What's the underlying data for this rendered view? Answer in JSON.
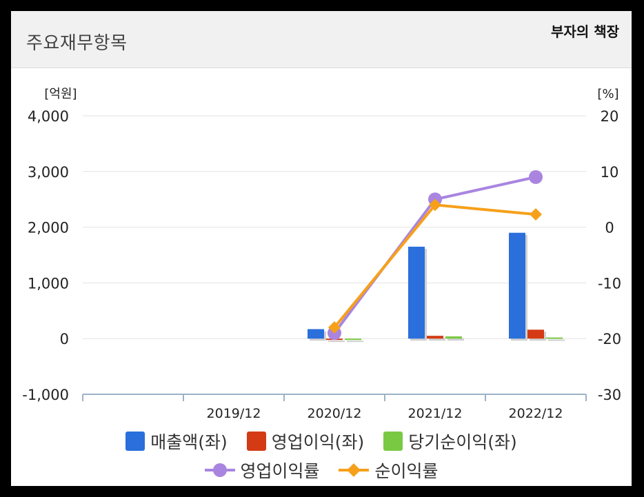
{
  "header": {
    "title": "주요재무항목",
    "badge": "부자의 책장"
  },
  "chart_data": {
    "type": "bar",
    "categories": [
      "",
      "2019/12",
      "2020/12",
      "2021/12",
      "2022/12"
    ],
    "y_left": {
      "unit": "[억원]",
      "ylim": [
        -1000,
        4000
      ],
      "ticks": [
        4000,
        3000,
        2000,
        1000,
        0,
        -1000
      ],
      "tick_labels": [
        "4,000",
        "3,000",
        "2,000",
        "1,000",
        "0",
        "-1,000"
      ]
    },
    "y_right": {
      "unit": "[%]",
      "ylim": [
        -30,
        20
      ],
      "ticks": [
        20,
        10,
        0,
        -10,
        -20,
        -30
      ],
      "tick_labels": [
        "20",
        "10",
        "0",
        "-10",
        "-20",
        "-30"
      ]
    },
    "grid": true,
    "series": [
      {
        "name": "매출액(좌)",
        "kind": "bar",
        "axis": "left",
        "color": "#2a6fdb",
        "values": [
          null,
          null,
          170,
          1650,
          1900
        ]
      },
      {
        "name": "영업이익(좌)",
        "kind": "bar",
        "axis": "left",
        "color": "#d43a14",
        "values": [
          null,
          null,
          -20,
          50,
          160
        ]
      },
      {
        "name": "당기순이익(좌)",
        "kind": "bar",
        "axis": "left",
        "color": "#7ac943",
        "values": [
          null,
          null,
          -20,
          40,
          20
        ]
      },
      {
        "name": "영업이익률",
        "kind": "line",
        "axis": "right",
        "color": "#a985e0",
        "marker": "circle",
        "values": [
          null,
          null,
          -19,
          5,
          9
        ]
      },
      {
        "name": "순이익률",
        "kind": "line",
        "axis": "right",
        "color": "#f6a01a",
        "marker": "diamond",
        "values": [
          null,
          null,
          -18,
          4,
          2.3
        ]
      }
    ],
    "legend_position": "bottom"
  }
}
